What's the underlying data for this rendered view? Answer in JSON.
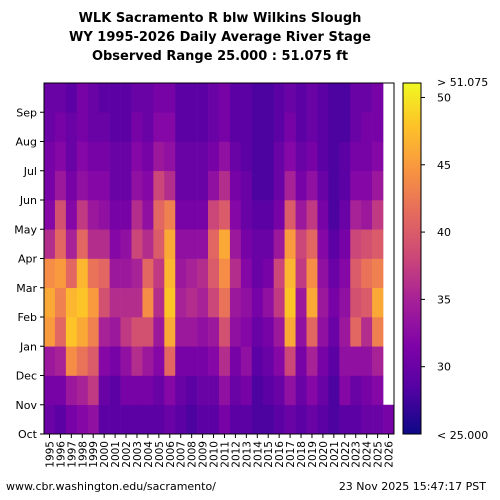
{
  "chart_data": {
    "type": "heatmap",
    "title_lines": [
      "WLK Sacramento R blw Wilkins Slough",
      "WY 1995-2026 Daily Average River Stage",
      "Observed Range 25.000 : 51.075 ft"
    ],
    "x_categories": [
      "1995",
      "1996",
      "1997",
      "1998",
      "1999",
      "2000",
      "2001",
      "2002",
      "2003",
      "2004",
      "2005",
      "2006",
      "2007",
      "2008",
      "2009",
      "2010",
      "2011",
      "2012",
      "2013",
      "2014",
      "2015",
      "2016",
      "2017",
      "2018",
      "2019",
      "2020",
      "2021",
      "2022",
      "2023",
      "2024",
      "2025",
      "2026"
    ],
    "y_tick_labels": [
      "Oct",
      "Nov",
      "Dec",
      "Jan",
      "Feb",
      "Mar",
      "Apr",
      "May",
      "Jun",
      "Jul",
      "Aug",
      "Sep"
    ],
    "colorbar": {
      "min": 25.0,
      "max": 51.075,
      "ticks": [
        30,
        35,
        40,
        45,
        50
      ],
      "min_label": "< 25.000",
      "max_label": "> 51.075",
      "colormap": "plasma"
    },
    "monthly_stage_ft": [
      [
        30,
        31,
        34,
        45,
        46,
        44,
        36,
        32,
        31,
        31,
        30,
        30
      ],
      [
        29,
        31,
        35,
        41,
        43,
        45,
        41,
        39,
        34,
        32,
        31,
        30
      ],
      [
        31,
        34,
        44,
        48,
        47,
        41,
        35,
        32,
        31,
        30,
        30,
        29
      ],
      [
        32,
        35,
        42,
        46,
        48,
        47,
        41,
        37,
        33,
        32,
        31,
        31
      ],
      [
        33,
        37,
        40,
        43,
        45,
        42,
        36,
        34,
        32,
        31,
        30,
        30
      ],
      [
        29,
        30,
        32,
        35,
        39,
        41,
        36,
        33,
        32,
        31,
        30,
        29
      ],
      [
        29,
        29,
        31,
        34,
        36,
        34,
        32,
        31,
        30,
        30,
        29,
        29
      ],
      [
        29,
        31,
        33,
        37,
        36,
        34,
        33,
        31,
        30,
        30,
        29,
        29
      ],
      [
        29,
        31,
        36,
        39,
        36,
        35,
        38,
        36,
        33,
        32,
        31,
        30
      ],
      [
        29,
        31,
        34,
        39,
        44,
        41,
        36,
        33,
        32,
        31,
        30,
        30
      ],
      [
        29,
        30,
        32,
        34,
        36,
        37,
        40,
        41,
        38,
        34,
        32,
        31
      ],
      [
        30,
        32,
        41,
        46,
        48,
        47,
        46,
        43,
        36,
        33,
        32,
        31
      ],
      [
        29,
        30,
        31,
        34,
        35,
        34,
        33,
        31,
        30,
        30,
        29,
        29
      ],
      [
        28,
        29,
        31,
        34,
        36,
        35,
        33,
        31,
        30,
        30,
        29,
        29
      ],
      [
        29,
        30,
        31,
        33,
        35,
        36,
        33,
        31,
        30,
        30,
        29,
        29
      ],
      [
        29,
        30,
        32,
        34,
        38,
        40,
        41,
        38,
        33,
        31,
        30,
        30
      ],
      [
        31,
        33,
        36,
        39,
        42,
        44,
        46,
        40,
        36,
        33,
        31,
        31
      ],
      [
        29,
        30,
        31,
        33,
        34,
        36,
        34,
        32,
        31,
        30,
        29,
        29
      ],
      [
        29,
        31,
        33,
        32,
        33,
        32,
        31,
        30,
        30,
        29,
        29,
        29
      ],
      [
        28,
        28,
        29,
        30,
        31,
        30,
        30,
        29,
        28,
        28,
        28,
        28
      ],
      [
        28,
        29,
        30,
        31,
        33,
        31,
        30,
        29,
        28,
        28,
        28,
        28
      ],
      [
        29,
        30,
        32,
        34,
        37,
        38,
        34,
        31,
        30,
        30,
        29,
        29
      ],
      [
        30,
        33,
        38,
        46,
        48,
        47,
        45,
        40,
        35,
        32,
        31,
        30
      ],
      [
        29,
        30,
        31,
        33,
        34,
        37,
        38,
        34,
        31,
        30,
        29,
        29
      ],
      [
        30,
        32,
        35,
        41,
        46,
        44,
        41,
        37,
        33,
        31,
        30,
        30
      ],
      [
        29,
        30,
        31,
        33,
        34,
        33,
        32,
        31,
        30,
        29,
        29,
        29
      ],
      [
        28,
        28,
        29,
        30,
        31,
        30,
        29,
        28,
        28,
        28,
        28,
        28
      ],
      [
        29,
        32,
        33,
        34,
        33,
        32,
        31,
        30,
        29,
        29,
        28,
        28
      ],
      [
        29,
        30,
        33,
        41,
        39,
        40,
        38,
        35,
        32,
        31,
        30,
        30
      ],
      [
        30,
        31,
        33,
        36,
        40,
        42,
        39,
        34,
        32,
        31,
        31,
        30
      ],
      [
        30,
        32,
        35,
        43,
        46,
        43,
        40,
        37,
        34,
        32,
        31,
        31
      ],
      [
        31,
        null,
        null,
        null,
        null,
        null,
        null,
        null,
        null,
        null,
        null,
        null
      ]
    ]
  },
  "footer": {
    "url": "www.cbr.washington.edu/sacramento/",
    "timestamp": "23 Nov 2025 15:47:17 PST"
  }
}
